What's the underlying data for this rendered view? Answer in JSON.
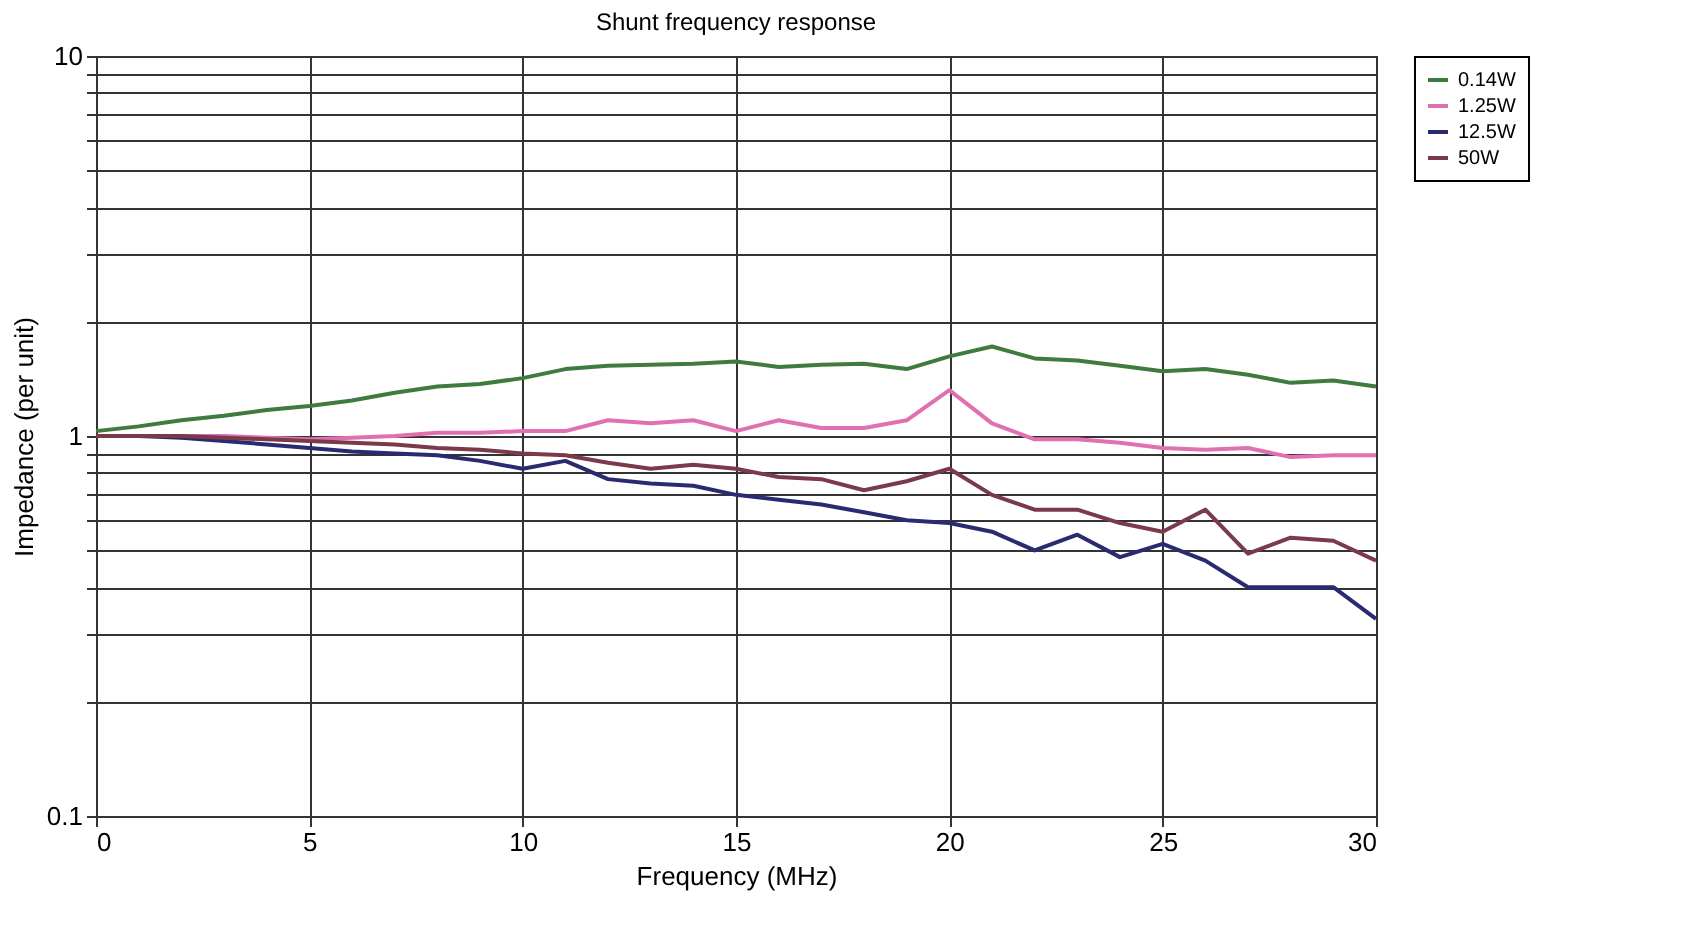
{
  "chart_data": {
    "type": "line",
    "title": "Shunt frequency response",
    "xlabel": "Frequency (MHz)",
    "ylabel": "Impedance (per unit)",
    "x": [
      0,
      1,
      2,
      3,
      4,
      5,
      6,
      7,
      8,
      9,
      10,
      11,
      12,
      13,
      14,
      15,
      16,
      17,
      18,
      19,
      20,
      21,
      22,
      23,
      24,
      25,
      26,
      27,
      28,
      29,
      30
    ],
    "series": [
      {
        "name": "0.14W",
        "color": "#3f7a3f",
        "values": [
          1.03,
          1.06,
          1.1,
          1.13,
          1.17,
          1.2,
          1.24,
          1.3,
          1.35,
          1.37,
          1.42,
          1.5,
          1.53,
          1.54,
          1.55,
          1.57,
          1.52,
          1.54,
          1.55,
          1.5,
          1.62,
          1.72,
          1.6,
          1.58,
          1.53,
          1.48,
          1.5,
          1.45,
          1.38,
          1.4,
          1.35
        ]
      },
      {
        "name": "1.25W",
        "color": "#e070b0",
        "values": [
          1.0,
          1.0,
          1.0,
          1.0,
          0.99,
          0.98,
          0.99,
          1.0,
          1.02,
          1.02,
          1.03,
          1.03,
          1.1,
          1.08,
          1.1,
          1.03,
          1.1,
          1.05,
          1.05,
          1.1,
          1.32,
          1.08,
          0.98,
          0.98,
          0.96,
          0.93,
          0.92,
          0.93,
          0.88,
          0.89,
          0.89
        ]
      },
      {
        "name": "12.5W",
        "color": "#2a2a70",
        "values": [
          1.0,
          1.0,
          0.99,
          0.97,
          0.95,
          0.93,
          0.91,
          0.9,
          0.89,
          0.86,
          0.82,
          0.86,
          0.77,
          0.75,
          0.74,
          0.7,
          0.68,
          0.66,
          0.63,
          0.6,
          0.59,
          0.56,
          0.5,
          0.55,
          0.48,
          0.52,
          0.47,
          0.4,
          0.4,
          0.4,
          0.33
        ]
      },
      {
        "name": "50W",
        "color": "#7a3a4a",
        "values": [
          1.0,
          1.0,
          1.0,
          0.99,
          0.98,
          0.97,
          0.96,
          0.95,
          0.93,
          0.92,
          0.9,
          0.89,
          0.85,
          0.82,
          0.84,
          0.82,
          0.78,
          0.77,
          0.72,
          0.76,
          0.82,
          0.7,
          0.64,
          0.64,
          0.59,
          0.56,
          0.64,
          0.49,
          0.54,
          0.53,
          0.47
        ]
      }
    ],
    "xlim": [
      0,
      30
    ],
    "xticks": [
      0,
      5,
      10,
      15,
      20,
      25,
      30
    ],
    "log": true,
    "ylim": [
      0.1,
      10
    ],
    "yticks": [
      0.1,
      {
        "value": 0.2,
        "label": null
      },
      {
        "value": 0.3,
        "label": null
      },
      {
        "value": 0.4,
        "label": null
      },
      {
        "value": 0.5,
        "label": null
      },
      {
        "value": 0.6,
        "label": null
      },
      {
        "value": 0.7,
        "label": null
      },
      {
        "value": 0.8,
        "label": null
      },
      {
        "value": 0.9,
        "label": null
      },
      1,
      {
        "value": 2,
        "label": null
      },
      {
        "value": 3,
        "label": null
      },
      {
        "value": 4,
        "label": null
      },
      {
        "value": 5,
        "label": null
      },
      {
        "value": 6,
        "label": null
      },
      {
        "value": 7,
        "label": null
      },
      {
        "value": 8,
        "label": null
      },
      {
        "value": 9,
        "label": null
      },
      10
    ],
    "grid": true,
    "legend": "right",
    "marker": "none",
    "line_style": "solid"
  }
}
